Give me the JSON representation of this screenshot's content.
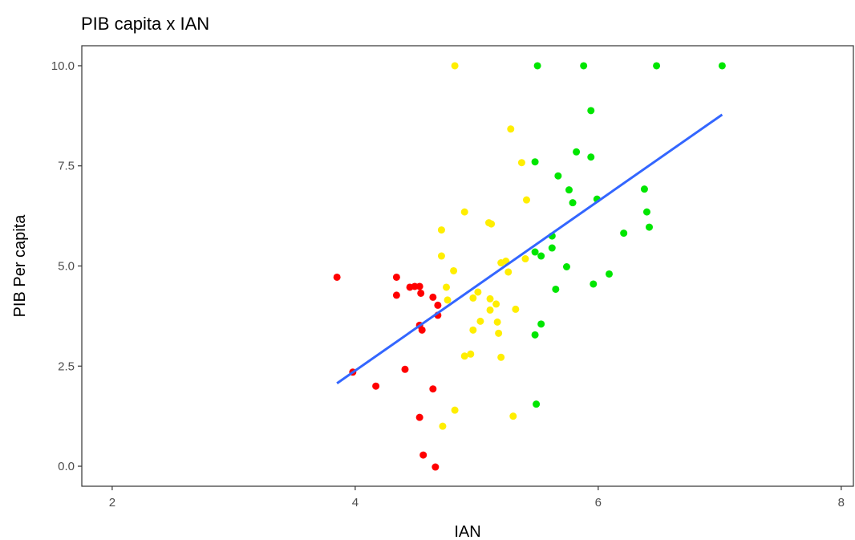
{
  "chart_data": {
    "type": "scatter",
    "title": "PIB capita x IAN",
    "xlabel": "IAN",
    "ylabel": "PIB Per capita",
    "xlim": [
      1.75,
      8.1
    ],
    "ylim": [
      -0.5,
      10.5
    ],
    "x_ticks": [
      2,
      4,
      6,
      8
    ],
    "y_ticks": [
      0.0,
      2.5,
      5.0,
      7.5,
      10.0
    ],
    "x_tick_labels": [
      "2",
      "4",
      "6",
      "8"
    ],
    "y_tick_labels": [
      "0.0",
      "2.5",
      "5.0",
      "7.5",
      "10.0"
    ],
    "grid": false,
    "legend": "none",
    "series": [
      {
        "color": "#ff0000",
        "points": [
          [
            3.85,
            4.72
          ],
          [
            3.98,
            2.35
          ],
          [
            4.17,
            2.0
          ],
          [
            4.34,
            4.72
          ],
          [
            4.34,
            4.27
          ],
          [
            4.41,
            2.42
          ],
          [
            4.45,
            4.47
          ],
          [
            4.49,
            4.49
          ],
          [
            4.53,
            4.49
          ],
          [
            4.54,
            4.32
          ],
          [
            4.53,
            3.52
          ],
          [
            4.55,
            3.4
          ],
          [
            4.53,
            1.22
          ],
          [
            4.56,
            0.28
          ],
          [
            4.64,
            4.22
          ],
          [
            4.68,
            4.02
          ],
          [
            4.68,
            3.77
          ],
          [
            4.64,
            1.93
          ],
          [
            4.66,
            -0.02
          ]
        ]
      },
      {
        "color": "#ffee00",
        "points": [
          [
            4.82,
            10.0
          ],
          [
            4.71,
            5.9
          ],
          [
            4.71,
            5.25
          ],
          [
            4.75,
            4.47
          ],
          [
            4.76,
            4.15
          ],
          [
            4.81,
            4.88
          ],
          [
            4.82,
            1.4
          ],
          [
            4.72,
            1.0
          ],
          [
            4.9,
            6.35
          ],
          [
            4.9,
            2.75
          ],
          [
            4.95,
            2.8
          ],
          [
            4.97,
            4.2
          ],
          [
            4.97,
            3.4
          ],
          [
            5.01,
            4.35
          ],
          [
            5.03,
            3.62
          ],
          [
            5.1,
            6.08
          ],
          [
            5.12,
            6.05
          ],
          [
            5.11,
            3.9
          ],
          [
            5.11,
            4.18
          ],
          [
            5.16,
            4.05
          ],
          [
            5.17,
            3.6
          ],
          [
            5.18,
            3.32
          ],
          [
            5.2,
            2.72
          ],
          [
            5.2,
            5.08
          ],
          [
            5.24,
            5.12
          ],
          [
            5.26,
            4.85
          ],
          [
            5.28,
            8.42
          ],
          [
            5.3,
            1.25
          ],
          [
            5.32,
            3.92
          ],
          [
            5.37,
            7.58
          ],
          [
            5.4,
            5.18
          ],
          [
            5.41,
            6.65
          ]
        ]
      },
      {
        "color": "#00e600",
        "points": [
          [
            5.5,
            10.0
          ],
          [
            5.88,
            10.0
          ],
          [
            6.48,
            10.0
          ],
          [
            7.02,
            10.0
          ],
          [
            5.94,
            8.88
          ],
          [
            5.82,
            7.85
          ],
          [
            5.94,
            7.72
          ],
          [
            5.48,
            7.6
          ],
          [
            5.67,
            7.25
          ],
          [
            5.76,
            6.9
          ],
          [
            5.79,
            6.58
          ],
          [
            5.99,
            6.67
          ],
          [
            6.38,
            6.92
          ],
          [
            6.4,
            6.35
          ],
          [
            6.42,
            5.97
          ],
          [
            6.21,
            5.82
          ],
          [
            5.62,
            5.75
          ],
          [
            5.62,
            5.45
          ],
          [
            5.48,
            5.35
          ],
          [
            5.53,
            5.25
          ],
          [
            5.74,
            4.98
          ],
          [
            6.09,
            4.8
          ],
          [
            5.96,
            4.55
          ],
          [
            5.65,
            4.42
          ],
          [
            5.53,
            3.55
          ],
          [
            5.48,
            3.28
          ],
          [
            5.49,
            1.55
          ]
        ]
      }
    ],
    "trendline": {
      "type": "linear",
      "color": "#3366ff",
      "x": [
        3.85,
        7.02
      ],
      "y": [
        2.07,
        8.78
      ]
    }
  }
}
